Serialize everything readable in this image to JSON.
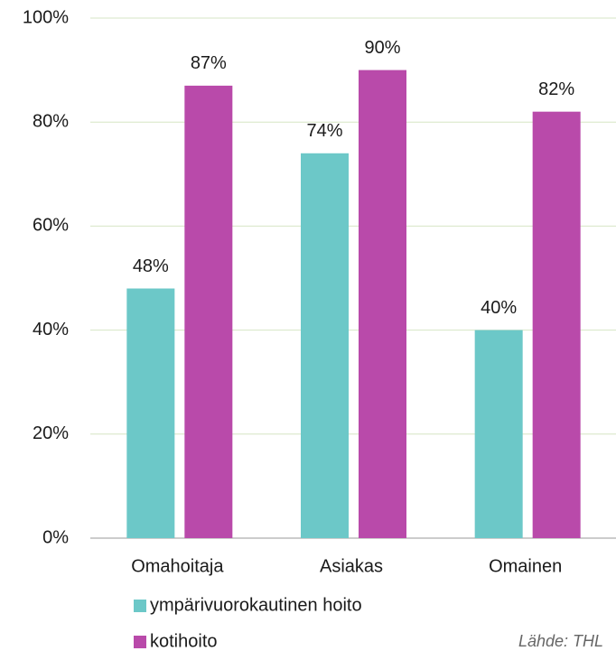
{
  "chart_data": {
    "type": "bar",
    "categories": [
      "Omahoitaja",
      "Asiakas",
      "Omainen"
    ],
    "series": [
      {
        "name": "ympärivuorokautinen hoito",
        "color": "#6cc8c8",
        "values": [
          48,
          74,
          40
        ],
        "value_labels": [
          "48%",
          "74%",
          "40%"
        ]
      },
      {
        "name": "kotihoito",
        "color": "#b94aaa",
        "values": [
          87,
          90,
          82
        ],
        "value_labels": [
          "87%",
          "90%",
          "82%"
        ]
      }
    ],
    "ylim": [
      0,
      100
    ],
    "yticks": [
      {
        "value": 0,
        "label": "0%"
      },
      {
        "value": 20,
        "label": "20%"
      },
      {
        "value": 40,
        "label": "40%"
      },
      {
        "value": 60,
        "label": "60%"
      },
      {
        "value": 80,
        "label": "80%"
      },
      {
        "value": 100,
        "label": "100%"
      }
    ],
    "grid": true,
    "legend": "bottom",
    "source": "Lähde: THL"
  }
}
